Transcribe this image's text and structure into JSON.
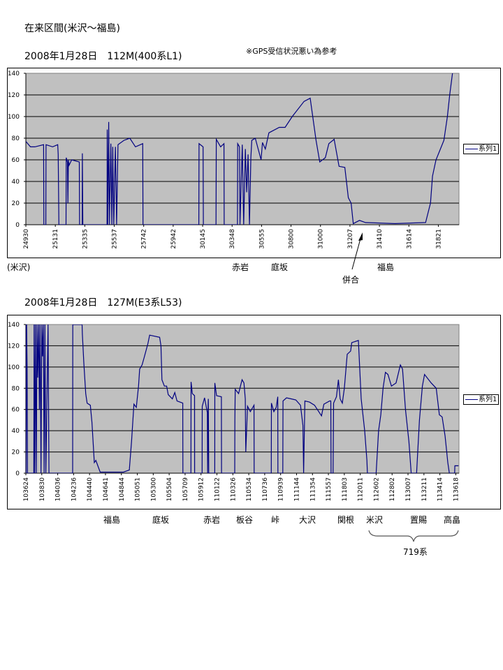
{
  "page_title": "在来区間(米沢～福島)",
  "colors": {
    "plot_bg": "#c0c0c0",
    "line": "#000080",
    "grid": "#000000"
  },
  "chart_data": [
    {
      "type": "line",
      "title": "2008年1月28日　112M(400系L1)",
      "note": "※GPS受信状況悪い為参考",
      "legend": "系列1",
      "legend_position": "right",
      "grid": true,
      "ylim": [
        0,
        140
      ],
      "y_ticks": [
        0,
        20,
        40,
        60,
        80,
        100,
        120,
        140
      ],
      "x_ticks": [
        "24930",
        "25131",
        "25335",
        "25537",
        "25742",
        "25942",
        "30145",
        "30348",
        "30555",
        "30800",
        "31000",
        "31207",
        "31410",
        "31614",
        "31821"
      ],
      "xlim": [
        "2:49:30",
        "3:19:50"
      ],
      "stations": [
        "(米沢)",
        "赤岩",
        "庭坂",
        "福島"
      ],
      "annotation": "併合",
      "points": [
        [
          "2:49:30",
          77
        ],
        [
          "2:49:49",
          72
        ],
        [
          "2:50:07",
          72
        ],
        [
          "2:50:43",
          74
        ],
        [
          "2:50:44",
          0
        ],
        [
          "2:50:52",
          0
        ],
        [
          "2:50:53",
          74
        ],
        [
          "2:51:20",
          72
        ],
        [
          "2:51:41",
          74
        ],
        [
          "2:51:43",
          65
        ],
        [
          "2:51:46",
          0
        ],
        [
          "2:52:16",
          0
        ],
        [
          "2:52:17",
          62
        ],
        [
          "2:52:22",
          58
        ],
        [
          "2:52:24",
          20
        ],
        [
          "2:52:26",
          60
        ],
        [
          "2:52:29",
          55
        ],
        [
          "2:52:40",
          60
        ],
        [
          "2:53:12",
          58
        ],
        [
          "2:53:13",
          0
        ],
        [
          "2:53:24",
          0
        ],
        [
          "2:53:25",
          66
        ],
        [
          "2:53:27",
          0
        ],
        [
          "2:55:07",
          0
        ],
        [
          "2:55:08",
          88
        ],
        [
          "2:55:10",
          0
        ],
        [
          "2:55:14",
          95
        ],
        [
          "2:55:17",
          0
        ],
        [
          "2:55:23",
          75
        ],
        [
          "2:55:27",
          0
        ],
        [
          "2:55:31",
          72
        ],
        [
          "2:55:35",
          0
        ],
        [
          "2:55:42",
          72
        ],
        [
          "2:55:47",
          0
        ],
        [
          "2:55:53",
          74
        ],
        [
          "2:56:18",
          78
        ],
        [
          "2:56:43",
          80
        ],
        [
          "2:57:07",
          72
        ],
        [
          "2:57:38",
          75
        ],
        [
          "2:57:39",
          0
        ],
        [
          "3:01:29",
          0
        ],
        [
          "3:01:30",
          75
        ],
        [
          "3:01:47",
          72
        ],
        [
          "3:01:48",
          0
        ],
        [
          "3:02:41",
          0
        ],
        [
          "3:02:42",
          79
        ],
        [
          "3:03:00",
          72
        ],
        [
          "3:03:14",
          75
        ],
        [
          "3:03:15",
          0
        ],
        [
          "3:04:11",
          0
        ],
        [
          "3:04:12",
          75
        ],
        [
          "3:04:20",
          72
        ],
        [
          "3:04:22",
          0
        ],
        [
          "3:04:32",
          74
        ],
        [
          "3:04:38",
          0
        ],
        [
          "3:04:45",
          70
        ],
        [
          "3:04:51",
          30
        ],
        [
          "3:04:57",
          65
        ],
        [
          "3:05:03",
          0
        ],
        [
          "3:05:09",
          62
        ],
        [
          "3:05:13",
          78
        ],
        [
          "3:05:28",
          80
        ],
        [
          "3:05:53",
          60
        ],
        [
          "3:05:59",
          76
        ],
        [
          "3:06:11",
          70
        ],
        [
          "3:06:26",
          85
        ],
        [
          "3:07:10",
          90
        ],
        [
          "3:07:35",
          90
        ],
        [
          "3:08:05",
          100
        ],
        [
          "3:08:53",
          114
        ],
        [
          "3:09:18",
          117
        ],
        [
          "3:09:42",
          78
        ],
        [
          "3:09:57",
          58
        ],
        [
          "3:10:21",
          62
        ],
        [
          "3:10:36",
          75
        ],
        [
          "3:10:59",
          79
        ],
        [
          "3:11:20",
          54
        ],
        [
          "3:11:45",
          53
        ],
        [
          "3:12:00",
          25
        ],
        [
          "3:12:12",
          20
        ],
        [
          "3:12:21",
          1
        ],
        [
          "3:12:47",
          4
        ],
        [
          "3:13:12",
          2
        ],
        [
          "3:15:15",
          1
        ],
        [
          "3:17:26",
          2
        ],
        [
          "3:17:47",
          20
        ],
        [
          "3:17:56",
          45
        ],
        [
          "3:18:11",
          60
        ],
        [
          "3:18:30",
          70
        ],
        [
          "3:18:45",
          78
        ],
        [
          "3:19:00",
          100
        ],
        [
          "3:19:10",
          120
        ],
        [
          "3:19:22",
          140
        ]
      ]
    },
    {
      "type": "line",
      "title": "2008年1月28日　127M(E3系L53)",
      "legend": "系列1",
      "legend_position": "right",
      "grid": true,
      "ylim": [
        0,
        140
      ],
      "y_ticks": [
        0,
        20,
        40,
        60,
        80,
        100,
        120,
        140
      ],
      "x_ticks": [
        "103624",
        "103830",
        "104036",
        "104236",
        "104440",
        "104641",
        "104844",
        "105051",
        "105300",
        "105504",
        "105709",
        "105912",
        "110122",
        "110326",
        "110534",
        "110736",
        "110939",
        "111144",
        "111354",
        "111557",
        "111803",
        "112011",
        "112602",
        "112802",
        "113007",
        "113211",
        "113414",
        "113618"
      ],
      "xlim": [
        "10:36:24",
        "11:36:43"
      ],
      "stations": [
        "福島",
        "庭坂",
        "赤岩",
        "板谷",
        "峠",
        "大沢",
        "関根",
        "米沢",
        "置賜",
        "高畠"
      ],
      "bracket_label": "719系",
      "points": [
        [
          "10:36:24",
          140
        ],
        [
          "10:36:26",
          0
        ],
        [
          "10:36:30",
          140
        ],
        [
          "10:36:34",
          100
        ],
        [
          "10:36:37",
          0
        ],
        [
          "10:37:27",
          0
        ],
        [
          "10:37:29",
          140
        ],
        [
          "10:37:35",
          0
        ],
        [
          "10:37:40",
          140
        ],
        [
          "10:37:47",
          0
        ],
        [
          "10:37:52",
          140
        ],
        [
          "10:37:58",
          90
        ],
        [
          "10:38:05",
          140
        ],
        [
          "10:38:11",
          60
        ],
        [
          "10:38:17",
          140
        ],
        [
          "10:38:24",
          0
        ],
        [
          "10:38:30",
          140
        ],
        [
          "10:38:36",
          110
        ],
        [
          "10:38:43",
          140
        ],
        [
          "10:38:49",
          0
        ],
        [
          "10:38:55",
          140
        ],
        [
          "10:39:02",
          0
        ],
        [
          "10:39:20",
          140
        ],
        [
          "10:39:27",
          0
        ],
        [
          "10:42:29",
          0
        ],
        [
          "10:42:30",
          140
        ],
        [
          "10:43:42",
          140
        ],
        [
          "10:43:44",
          131
        ],
        [
          "10:43:55",
          105
        ],
        [
          "10:44:10",
          75
        ],
        [
          "10:44:21",
          66
        ],
        [
          "10:44:46",
          64
        ],
        [
          "10:44:58",
          48
        ],
        [
          "10:45:16",
          10
        ],
        [
          "10:45:28",
          12
        ],
        [
          "10:46:01",
          1
        ],
        [
          "10:49:00",
          1
        ],
        [
          "10:49:47",
          3
        ],
        [
          "10:50:05",
          30
        ],
        [
          "10:50:24",
          65
        ],
        [
          "10:50:43",
          62
        ],
        [
          "10:51:01",
          82
        ],
        [
          "10:51:10",
          98
        ],
        [
          "10:51:30",
          102
        ],
        [
          "10:51:49",
          110
        ],
        [
          "10:52:17",
          122
        ],
        [
          "10:52:31",
          130
        ],
        [
          "10:53:50",
          128
        ],
        [
          "10:54:00",
          120
        ],
        [
          "10:54:08",
          88
        ],
        [
          "10:54:27",
          82
        ],
        [
          "10:54:44",
          82
        ],
        [
          "10:54:57",
          74
        ],
        [
          "10:55:29",
          70
        ],
        [
          "10:55:48",
          76
        ],
        [
          "10:56:06",
          68
        ],
        [
          "10:56:51",
          66
        ],
        [
          "10:56:52",
          0
        ],
        [
          "10:57:54",
          0
        ],
        [
          "10:57:55",
          86
        ],
        [
          "10:58:05",
          75
        ],
        [
          "10:58:22",
          73
        ],
        [
          "10:58:23",
          0
        ],
        [
          "10:59:21",
          0
        ],
        [
          "10:59:22",
          63
        ],
        [
          "10:59:41",
          71
        ],
        [
          "11:00:04",
          57
        ],
        [
          "11:00:06",
          0
        ],
        [
          "11:00:10",
          65
        ],
        [
          "11:00:12",
          70
        ],
        [
          "11:00:15",
          0
        ],
        [
          "11:01:04",
          0
        ],
        [
          "11:01:05",
          85
        ],
        [
          "11:01:19",
          73
        ],
        [
          "11:01:57",
          72
        ],
        [
          "11:01:58",
          0
        ],
        [
          "11:03:41",
          0
        ],
        [
          "11:03:42",
          50
        ],
        [
          "11:03:45",
          79
        ],
        [
          "11:04:12",
          75
        ],
        [
          "11:04:40",
          88
        ],
        [
          "11:04:55",
          85
        ],
        [
          "11:05:06",
          70
        ],
        [
          "11:05:10",
          20
        ],
        [
          "11:05:24",
          63
        ],
        [
          "11:05:46",
          58
        ],
        [
          "11:06:14",
          64
        ],
        [
          "11:06:15",
          0
        ],
        [
          "11:08:27",
          0
        ],
        [
          "11:08:28",
          66
        ],
        [
          "11:08:47",
          58
        ],
        [
          "11:09:05",
          62
        ],
        [
          "11:09:17",
          72
        ],
        [
          "11:09:18",
          0
        ],
        [
          "11:09:56",
          0
        ],
        [
          "11:09:58",
          68
        ],
        [
          "11:10:25",
          71
        ],
        [
          "11:11:02",
          70
        ],
        [
          "11:11:38",
          69
        ],
        [
          "11:12:16",
          64
        ],
        [
          "11:12:36",
          45
        ],
        [
          "11:12:42",
          0
        ],
        [
          "11:12:52",
          68
        ],
        [
          "11:13:29",
          67
        ],
        [
          "11:14:10",
          64
        ],
        [
          "11:15:04",
          54
        ],
        [
          "11:15:22",
          65
        ],
        [
          "11:16:07",
          68
        ],
        [
          "11:16:16",
          68
        ],
        [
          "11:16:18",
          0
        ],
        [
          "11:16:34",
          0
        ],
        [
          "11:16:38",
          66
        ],
        [
          "11:17:01",
          72
        ],
        [
          "11:17:16",
          88
        ],
        [
          "11:17:30",
          70
        ],
        [
          "11:17:47",
          66
        ],
        [
          "11:18:03",
          80
        ],
        [
          "11:18:26",
          112
        ],
        [
          "11:18:54",
          115
        ],
        [
          "11:19:03",
          123
        ],
        [
          "11:19:56",
          125
        ],
        [
          "11:20:32",
          70
        ],
        [
          "11:21:49",
          40
        ],
        [
          "11:22:38",
          12
        ],
        [
          "11:22:49",
          0
        ],
        [
          "11:26:02",
          0
        ],
        [
          "11:26:20",
          40
        ],
        [
          "11:26:37",
          55
        ],
        [
          "11:26:54",
          80
        ],
        [
          "11:27:12",
          95
        ],
        [
          "11:27:31",
          93
        ],
        [
          "11:27:57",
          82
        ],
        [
          "11:28:33",
          85
        ],
        [
          "11:29:07",
          102
        ],
        [
          "11:29:24",
          98
        ],
        [
          "11:29:47",
          60
        ],
        [
          "11:30:14",
          30
        ],
        [
          "11:30:32",
          0
        ],
        [
          "11:31:14",
          0
        ],
        [
          "11:31:36",
          50
        ],
        [
          "11:31:59",
          82
        ],
        [
          "11:32:16",
          93
        ],
        [
          "11:33:07",
          85
        ],
        [
          "11:33:46",
          80
        ],
        [
          "11:34:10",
          55
        ],
        [
          "11:34:32",
          53
        ],
        [
          "11:34:55",
          35
        ],
        [
          "11:35:16",
          10
        ],
        [
          "11:35:28",
          0
        ],
        [
          "11:36:09",
          0
        ],
        [
          "11:36:11",
          7
        ],
        [
          "11:36:39",
          7
        ]
      ]
    }
  ]
}
